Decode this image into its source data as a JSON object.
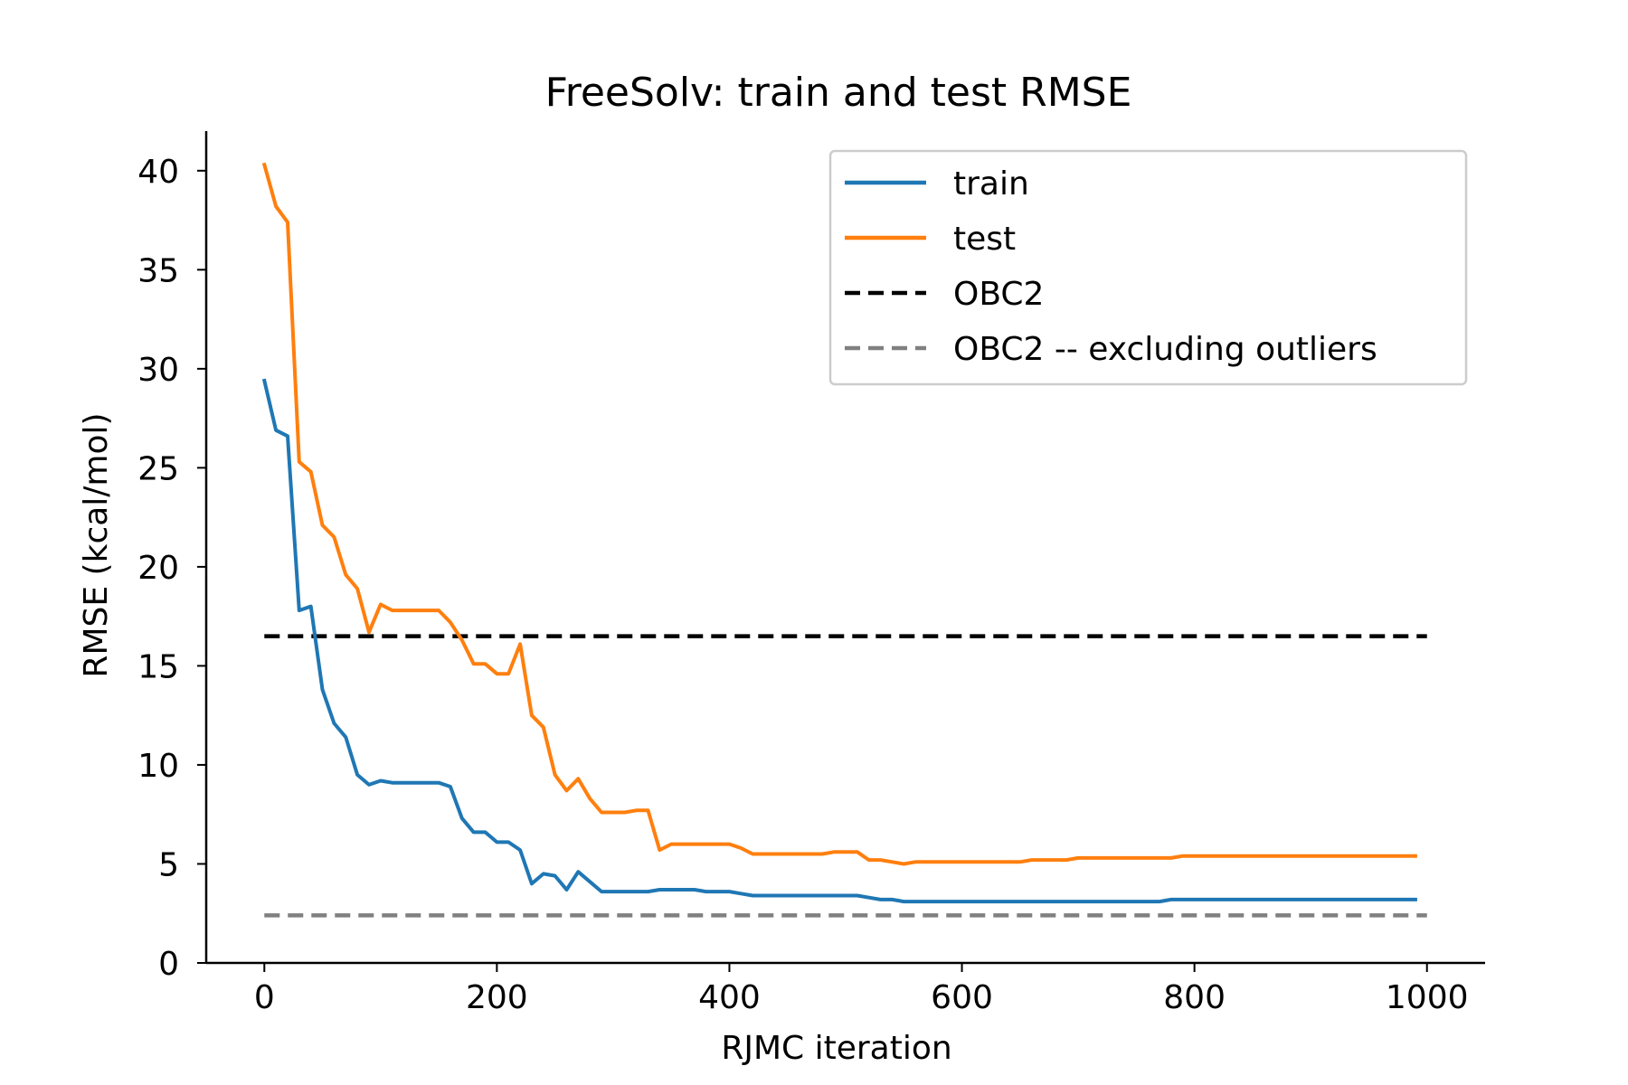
{
  "chart_data": {
    "type": "line",
    "title": "FreeSolv: train and test RMSE",
    "xlabel": "RJMC iteration",
    "ylabel": "RMSE (kcal/mol)",
    "xlim": [
      -50,
      1050
    ],
    "ylim": [
      0,
      42
    ],
    "xticks": [
      0,
      200,
      400,
      600,
      800,
      1000
    ],
    "yticks": [
      0,
      5,
      10,
      15,
      20,
      25,
      30,
      35,
      40
    ],
    "grid": false,
    "legend_position": "top-right",
    "x": [
      0,
      10,
      20,
      30,
      40,
      50,
      60,
      70,
      80,
      90,
      100,
      110,
      120,
      130,
      140,
      150,
      160,
      170,
      180,
      190,
      200,
      210,
      220,
      230,
      240,
      250,
      260,
      270,
      280,
      290,
      300,
      310,
      320,
      330,
      340,
      350,
      360,
      370,
      380,
      390,
      400,
      410,
      420,
      430,
      440,
      450,
      460,
      470,
      480,
      490,
      500,
      510,
      520,
      530,
      540,
      550,
      560,
      570,
      580,
      590,
      600,
      610,
      620,
      630,
      640,
      650,
      660,
      670,
      680,
      690,
      700,
      710,
      720,
      730,
      740,
      750,
      760,
      770,
      780,
      790,
      800,
      810,
      820,
      830,
      840,
      850,
      860,
      870,
      880,
      890,
      900,
      910,
      920,
      930,
      940,
      950,
      960,
      970,
      980,
      990
    ],
    "series": [
      {
        "name": "train",
        "color": "#1f77b4",
        "style": "solid",
        "values": [
          29.4,
          26.9,
          26.6,
          17.8,
          18.0,
          13.8,
          12.1,
          11.4,
          9.5,
          9.0,
          9.2,
          9.1,
          9.1,
          9.1,
          9.1,
          9.1,
          8.9,
          7.3,
          6.6,
          6.6,
          6.1,
          6.1,
          5.7,
          4.0,
          4.5,
          4.4,
          3.7,
          4.6,
          4.1,
          3.6,
          3.6,
          3.6,
          3.6,
          3.6,
          3.7,
          3.7,
          3.7,
          3.7,
          3.6,
          3.6,
          3.6,
          3.5,
          3.4,
          3.4,
          3.4,
          3.4,
          3.4,
          3.4,
          3.4,
          3.4,
          3.4,
          3.4,
          3.3,
          3.2,
          3.2,
          3.1,
          3.1,
          3.1,
          3.1,
          3.1,
          3.1,
          3.1,
          3.1,
          3.1,
          3.1,
          3.1,
          3.1,
          3.1,
          3.1,
          3.1,
          3.1,
          3.1,
          3.1,
          3.1,
          3.1,
          3.1,
          3.1,
          3.1,
          3.2,
          3.2,
          3.2,
          3.2,
          3.2,
          3.2,
          3.2,
          3.2,
          3.2,
          3.2,
          3.2,
          3.2,
          3.2,
          3.2,
          3.2,
          3.2,
          3.2,
          3.2,
          3.2,
          3.2,
          3.2,
          3.2
        ]
      },
      {
        "name": "test",
        "color": "#ff7f0e",
        "style": "solid",
        "values": [
          40.3,
          38.2,
          37.4,
          25.3,
          24.8,
          22.1,
          21.5,
          19.6,
          18.9,
          16.7,
          18.1,
          17.8,
          17.8,
          17.8,
          17.8,
          17.8,
          17.2,
          16.3,
          15.1,
          15.1,
          14.6,
          14.6,
          16.1,
          12.5,
          11.9,
          9.5,
          8.7,
          9.3,
          8.3,
          7.6,
          7.6,
          7.6,
          7.7,
          7.7,
          5.7,
          6.0,
          6.0,
          6.0,
          6.0,
          6.0,
          6.0,
          5.8,
          5.5,
          5.5,
          5.5,
          5.5,
          5.5,
          5.5,
          5.5,
          5.6,
          5.6,
          5.6,
          5.2,
          5.2,
          5.1,
          5.0,
          5.1,
          5.1,
          5.1,
          5.1,
          5.1,
          5.1,
          5.1,
          5.1,
          5.1,
          5.1,
          5.2,
          5.2,
          5.2,
          5.2,
          5.3,
          5.3,
          5.3,
          5.3,
          5.3,
          5.3,
          5.3,
          5.3,
          5.3,
          5.4,
          5.4,
          5.4,
          5.4,
          5.4,
          5.4,
          5.4,
          5.4,
          5.4,
          5.4,
          5.4,
          5.4,
          5.4,
          5.4,
          5.4,
          5.4,
          5.4,
          5.4,
          5.4,
          5.4,
          5.4
        ]
      }
    ],
    "hlines": [
      {
        "name": "OBC2",
        "y": 16.5,
        "color": "#000000",
        "style": "dashed"
      },
      {
        "name": "OBC2 -- excluding outliers",
        "y": 2.4,
        "color": "#808080",
        "style": "dashed"
      }
    ],
    "legend": [
      {
        "label": "train",
        "color": "#1f77b4",
        "style": "solid"
      },
      {
        "label": "test",
        "color": "#ff7f0e",
        "style": "solid"
      },
      {
        "label": "OBC2",
        "color": "#000000",
        "style": "dashed"
      },
      {
        "label": "OBC2 -- excluding outliers",
        "color": "#808080",
        "style": "dashed"
      }
    ]
  }
}
